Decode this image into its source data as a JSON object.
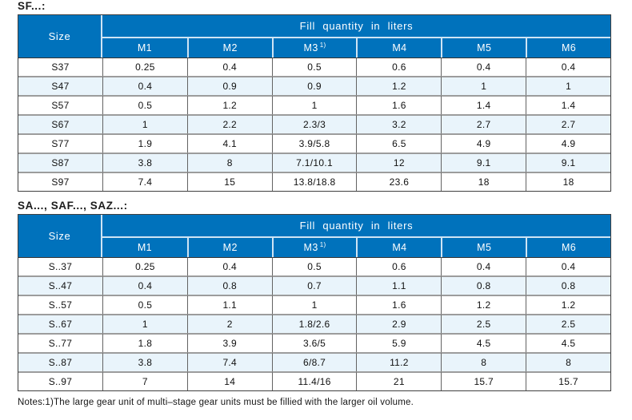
{
  "colors": {
    "header_blue": "#0072BC",
    "alt_row_blue": "#E9F4FB",
    "header_separator": "#CFE4F4"
  },
  "tables": [
    {
      "title": "SF...:",
      "size_header": "Size",
      "group_header": "Fill quantity in liters",
      "columns": [
        "M1",
        "M2",
        "M3",
        "M4",
        "M5",
        "M6"
      ],
      "footnote_marker": "1)",
      "rows": [
        {
          "size": "S37",
          "values": [
            "0.25",
            "0.4",
            "0.5",
            "0.6",
            "0.4",
            "0.4"
          ]
        },
        {
          "size": "S47",
          "values": [
            "0.4",
            "0.9",
            "0.9",
            "1.2",
            "1",
            "1"
          ]
        },
        {
          "size": "S57",
          "values": [
            "0.5",
            "1.2",
            "1",
            "1.6",
            "1.4",
            "1.4"
          ]
        },
        {
          "size": "S67",
          "values": [
            "1",
            "2.2",
            "2.3/3",
            "3.2",
            "2.7",
            "2.7"
          ]
        },
        {
          "size": "S77",
          "values": [
            "1.9",
            "4.1",
            "3.9/5.8",
            "6.5",
            "4.9",
            "4.9"
          ]
        },
        {
          "size": "S87",
          "values": [
            "3.8",
            "8",
            "7.1/10.1",
            "12",
            "9.1",
            "9.1"
          ]
        },
        {
          "size": "S97",
          "values": [
            "7.4",
            "15",
            "13.8/18.8",
            "23.6",
            "18",
            "18"
          ]
        }
      ]
    },
    {
      "title": "SA..., SAF..., SAZ...:",
      "size_header": "Size",
      "group_header": "Fill quantity in liters",
      "columns": [
        "M1",
        "M2",
        "M3",
        "M4",
        "M5",
        "M6"
      ],
      "footnote_marker": "1)",
      "rows": [
        {
          "size": "S..37",
          "values": [
            "0.25",
            "0.4",
            "0.5",
            "0.6",
            "0.4",
            "0.4"
          ]
        },
        {
          "size": "S..47",
          "values": [
            "0.4",
            "0.8",
            "0.7",
            "1.1",
            "0.8",
            "0.8"
          ]
        },
        {
          "size": "S..57",
          "values": [
            "0.5",
            "1.1",
            "1",
            "1.6",
            "1.2",
            "1.2"
          ]
        },
        {
          "size": "S..67",
          "values": [
            "1",
            "2",
            "1.8/2.6",
            "2.9",
            "2.5",
            "2.5"
          ]
        },
        {
          "size": "S..77",
          "values": [
            "1.8",
            "3.9",
            "3.6/5",
            "5.9",
            "4.5",
            "4.5"
          ]
        },
        {
          "size": "S..87",
          "values": [
            "3.8",
            "7.4",
            "6/8.7",
            "11.2",
            "8",
            "8"
          ]
        },
        {
          "size": "S..97",
          "values": [
            "7",
            "14",
            "11.4/16",
            "21",
            "15.7",
            "15.7"
          ]
        }
      ]
    }
  ],
  "note": "Notes:1)The large gear unit of multi–stage gear units must be fillied with the larger oil volume."
}
